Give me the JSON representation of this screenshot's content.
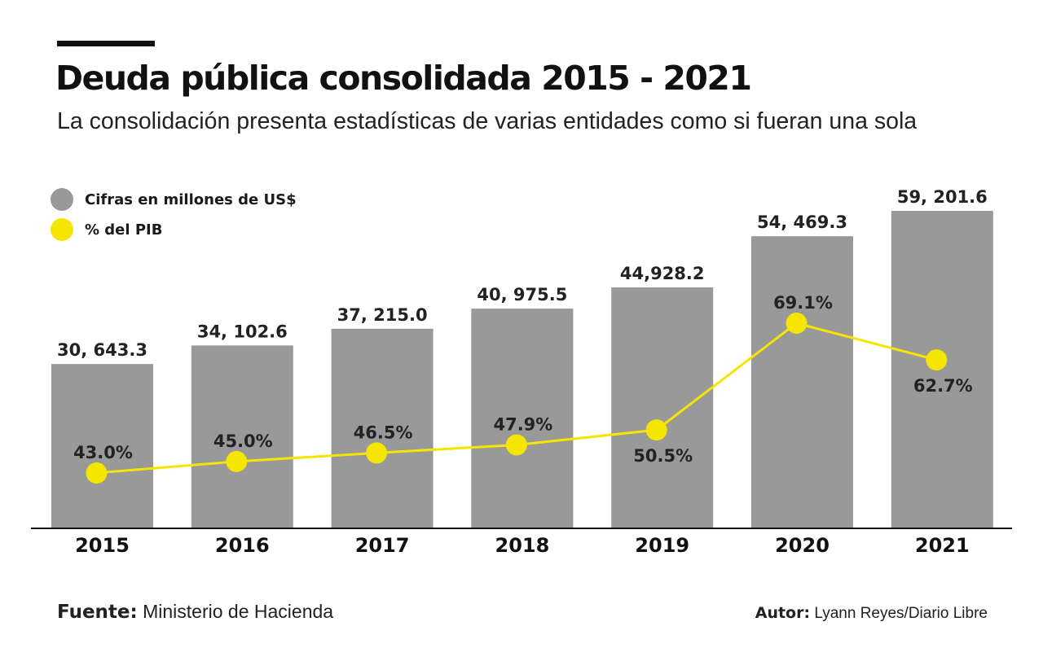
{
  "title": "Deuda pública consolidada 2015 - 2021",
  "subtitle": "La consolidación presenta estadísticas de varias entidades como si fueran una sola",
  "footer": {
    "source_label": "Fuente:",
    "source": "Ministerio de Hacienda",
    "author_label": "Autor:",
    "author": "Lyann Reyes/Diario Libre"
  },
  "chart_data": {
    "type": "bar+line",
    "categories": [
      "2015",
      "2016",
      "2017",
      "2018",
      "2019",
      "2020",
      "2021"
    ],
    "series": [
      {
        "name": "Cifras en millones de US$",
        "type": "bar",
        "color": "#999999",
        "values": [
          30643.3,
          34102.6,
          37215.0,
          40975.5,
          44928.2,
          54469.3,
          59201.6
        ],
        "labels": [
          "30, 643.3",
          "34, 102.6",
          "37, 215.0",
          "40, 975.5",
          "44,928.2",
          "54, 469.3",
          "59, 201.6"
        ]
      },
      {
        "name": "% del PIB",
        "type": "line",
        "color": "#f5e600",
        "values": [
          43.0,
          45.0,
          46.5,
          47.9,
          50.5,
          69.1,
          62.7
        ],
        "labels": [
          "43.0%",
          "45.0%",
          "46.5%",
          "47.9%",
          "50.5%",
          "69.1%",
          "62.7%"
        ],
        "label_positions": [
          "above",
          "above",
          "above",
          "above",
          "below",
          "above",
          "below"
        ]
      }
    ],
    "legend_position": "top-left",
    "grid": false
  }
}
